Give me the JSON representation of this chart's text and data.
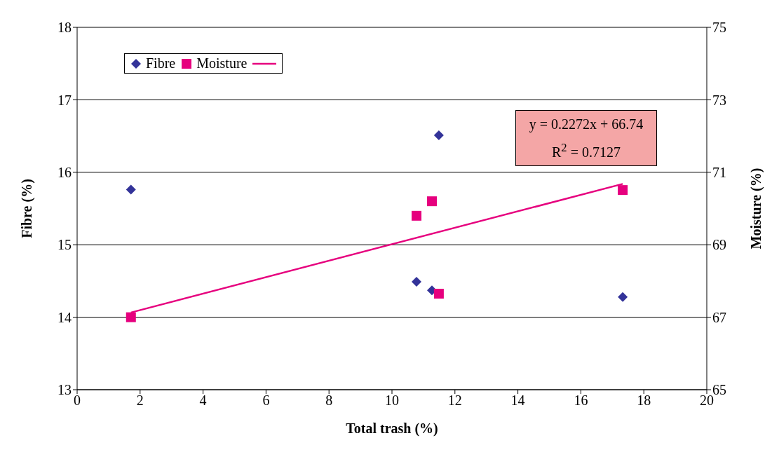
{
  "chart_data": {
    "type": "scatter",
    "xlabel": "Total trash (%)",
    "ylabel": "Fibre (%)",
    "y2label": "Moisture (%)",
    "xlim": [
      0,
      20
    ],
    "xticks": [
      0,
      2,
      4,
      6,
      8,
      10,
      12,
      14,
      16,
      18,
      20
    ],
    "ylim": [
      13,
      18
    ],
    "yticks": [
      13,
      14,
      15,
      16,
      17,
      18
    ],
    "y2lim": [
      65,
      75
    ],
    "y2ticks": [
      65,
      67,
      69,
      71,
      73,
      75
    ],
    "grid": "y",
    "legend": "top left",
    "series": [
      {
        "name": "Fibre",
        "marker": "diamond",
        "color": "#333399",
        "x": [
          1.71,
          11.49,
          10.78,
          11.27,
          17.33
        ],
        "values": [
          15.76,
          16.51,
          14.49,
          14.37,
          14.28
        ]
      },
      {
        "name": "Moisture",
        "marker": "square",
        "axis": "y2",
        "color": "#e6007e",
        "x": [
          1.71,
          10.78,
          11.27,
          11.49,
          17.33
        ],
        "values": [
          67.0,
          69.8,
          70.2,
          67.65,
          70.51
        ]
      },
      {
        "type": "line",
        "marker": "none",
        "axis": "y2",
        "color": "#e6007e",
        "x": [
          1.71,
          17.33
        ],
        "values": [
          67.13,
          70.68
        ]
      }
    ],
    "annotations": [
      "y = 0.2272x + 66.74",
      "R$^{2}$ = 0.7127"
    ]
  }
}
